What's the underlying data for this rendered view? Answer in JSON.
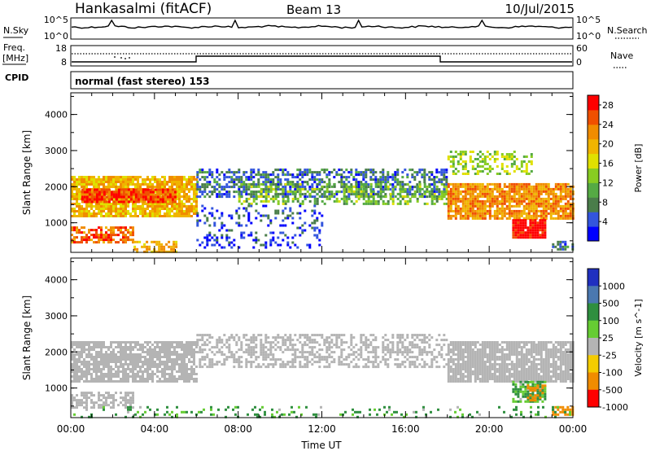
{
  "header": {
    "station": "Hankasalmi (fitACF)",
    "beam": "Beam 13",
    "date": "10/Jul/2015"
  },
  "noise_panel": {
    "left_label": "N.Sky",
    "right_label": "N.Search",
    "left_ticks": [
      "10^5",
      "10^0"
    ],
    "right_ticks": [
      "10^5",
      "10^0"
    ]
  },
  "freq_panel": {
    "left_label_line1": "Freq.",
    "left_label_line2": "[MHz]",
    "left_ticks": [
      "18",
      "8"
    ],
    "right_label": "Nave",
    "right_ticks": [
      "60",
      "0"
    ]
  },
  "cpid": {
    "label": "CPID",
    "text": "normal (fast stereo) 153"
  },
  "colors": {
    "power": [
      "#0000ff",
      "#3355dd",
      "#4a7d4a",
      "#55aa44",
      "#88cc22",
      "#e0e000",
      "#f0b400",
      "#f08c00",
      "#f05000",
      "#ff0000"
    ],
    "velocity": [
      "#2030c0",
      "#4a78b0",
      "#2f8f3f",
      "#66cc33",
      "#b4b4b4",
      "#f4cc00",
      "#f08c00",
      "#ff0000"
    ]
  },
  "chart_data": [
    {
      "type": "heatmap",
      "name": "power",
      "ylabel": "Slant Range [km]",
      "xlabel": "",
      "y_ticks": [
        "1000",
        "2000",
        "3000",
        "4000"
      ],
      "x_ticks": [
        "00:00",
        "04:00",
        "08:00",
        "12:00",
        "16:00",
        "20:00",
        "00:00"
      ],
      "xlim": [
        0,
        24
      ],
      "ylim": [
        180,
        4600
      ],
      "colorbar": {
        "label": "Power [dB]",
        "ticks": [
          "4",
          "8",
          "12",
          "16",
          "20",
          "24",
          "28"
        ],
        "range": [
          0,
          30
        ]
      },
      "regions": [
        {
          "x": [
            0.0,
            6.0
          ],
          "y": [
            1200,
            2300
          ],
          "value": 20,
          "density": 0.85
        },
        {
          "x": [
            0.5,
            5.0
          ],
          "y": [
            1550,
            1950
          ],
          "value": 26,
          "density": 0.9
        },
        {
          "x": [
            0.0,
            3.0
          ],
          "y": [
            450,
            900
          ],
          "value": 24,
          "density": 0.7
        },
        {
          "x": [
            3.0,
            5.0
          ],
          "y": [
            200,
            500
          ],
          "value": 20,
          "density": 0.6
        },
        {
          "x": [
            6.0,
            18.0
          ],
          "y": [
            1750,
            2500
          ],
          "value": 6,
          "density": 0.55
        },
        {
          "x": [
            8.0,
            18.0
          ],
          "y": [
            1500,
            2100
          ],
          "value": 12,
          "density": 0.45
        },
        {
          "x": [
            6.0,
            12.0
          ],
          "y": [
            300,
            1500
          ],
          "value": 4,
          "density": 0.22
        },
        {
          "x": [
            18.0,
            24.0
          ],
          "y": [
            1150,
            2100
          ],
          "value": 22,
          "density": 0.85
        },
        {
          "x": [
            18.0,
            22.0
          ],
          "y": [
            2350,
            3000
          ],
          "value": 14,
          "density": 0.4
        },
        {
          "x": [
            21.1,
            22.7
          ],
          "y": [
            600,
            1100
          ],
          "value": 29,
          "density": 0.95
        },
        {
          "x": [
            23.0,
            24.0
          ],
          "y": [
            250,
            500
          ],
          "value": 6,
          "density": 0.6
        }
      ]
    },
    {
      "type": "heatmap",
      "name": "velocity",
      "ylabel": "Slant Range [km]",
      "xlabel": "Time UT",
      "y_ticks": [
        "1000",
        "2000",
        "3000",
        "4000"
      ],
      "x_ticks": [
        "00:00",
        "04:00",
        "08:00",
        "12:00",
        "16:00",
        "20:00",
        "00:00"
      ],
      "xlim": [
        0,
        24
      ],
      "ylim": [
        180,
        4600
      ],
      "colorbar": {
        "label": "Velocity [m s^-1]",
        "ticks": [
          "1000",
          "500",
          "100",
          "25",
          "-25",
          "-100",
          "-500",
          "-1000"
        ]
      },
      "regions": [
        {
          "x": [
            0.0,
            6.0
          ],
          "y": [
            1200,
            2300
          ],
          "value": 0,
          "density": 0.8
        },
        {
          "x": [
            0.0,
            3.0
          ],
          "y": [
            450,
            900
          ],
          "value": 0,
          "density": 0.6
        },
        {
          "x": [
            6.0,
            18.0
          ],
          "y": [
            1600,
            2500
          ],
          "value": 0,
          "density": 0.5
        },
        {
          "x": [
            18.0,
            24.0
          ],
          "y": [
            1150,
            2300
          ],
          "value": 0,
          "density": 0.85
        },
        {
          "x": [
            21.1,
            22.7
          ],
          "y": [
            600,
            1200
          ],
          "value": 150,
          "density": 0.8
        },
        {
          "x": [
            21.8,
            22.7
          ],
          "y": [
            650,
            1100
          ],
          "value": -300,
          "density": 0.5
        },
        {
          "x": [
            23.0,
            24.0
          ],
          "y": [
            250,
            500
          ],
          "value": -300,
          "density": 0.6
        },
        {
          "x": [
            0.0,
            24.0
          ],
          "y": [
            200,
            500
          ],
          "value": 150,
          "density": 0.15
        }
      ]
    }
  ]
}
